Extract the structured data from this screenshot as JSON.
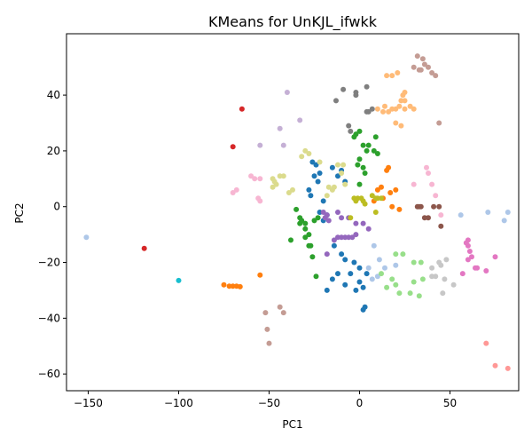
{
  "chart_data": {
    "type": "scatter",
    "title": "KMeans for UnKJL_ifwkk",
    "xlabel": "PC1",
    "ylabel": "PC2",
    "xlim": [
      -162,
      88
    ],
    "ylim": [
      -66,
      62
    ],
    "xticks": [
      -150,
      -100,
      -50,
      0,
      50
    ],
    "yticks": [
      -60,
      -40,
      -20,
      0,
      20,
      40
    ],
    "grid": false,
    "legend": "none",
    "clusters": [
      {
        "color": "#1f77b4",
        "points": [
          [
            -26,
            16
          ],
          [
            -24,
            15
          ],
          [
            -22,
            12
          ],
          [
            -28,
            6
          ],
          [
            -27,
            4
          ],
          [
            -20,
            2
          ],
          [
            -25,
            11
          ],
          [
            -23,
            9
          ],
          [
            -15,
            14
          ],
          [
            -10,
            13
          ],
          [
            -12,
            11
          ],
          [
            -8,
            9
          ],
          [
            -22,
            -2
          ],
          [
            -18,
            -3
          ],
          [
            -20,
            -5
          ],
          [
            -10,
            -17
          ],
          [
            -8,
            -19
          ],
          [
            -5,
            -24
          ],
          [
            -12,
            -24
          ],
          [
            -15,
            -26
          ],
          [
            -18,
            -30
          ],
          [
            -8,
            -28
          ],
          [
            0,
            -27
          ],
          [
            2,
            -29
          ],
          [
            -2,
            -30
          ],
          [
            4,
            -24
          ],
          [
            -3,
            -20
          ],
          [
            2,
            -37
          ],
          [
            3,
            -36
          ],
          [
            0,
            -22
          ],
          [
            -14,
            -14
          ]
        ]
      },
      {
        "color": "#ff7f0e",
        "points": [
          [
            -75,
            -28
          ],
          [
            -72,
            -28.5
          ],
          [
            -70,
            -28.5
          ],
          [
            -68,
            -28.5
          ],
          [
            -66,
            -28.7
          ],
          [
            -55,
            -24.5
          ],
          [
            10,
            6
          ],
          [
            12,
            7
          ],
          [
            20,
            6
          ],
          [
            17,
            5
          ],
          [
            18,
            0
          ],
          [
            22,
            -1
          ],
          [
            15,
            13
          ],
          [
            16,
            14
          ],
          [
            8,
            2
          ],
          [
            13,
            3
          ]
        ]
      },
      {
        "color": "#2ca02c",
        "points": [
          [
            -3,
            25
          ],
          [
            -2,
            26
          ],
          [
            0,
            27
          ],
          [
            2,
            22
          ],
          [
            5,
            22
          ],
          [
            4,
            20
          ],
          [
            8,
            20
          ],
          [
            9,
            25
          ],
          [
            10,
            19
          ],
          [
            0,
            17
          ],
          [
            -1,
            15
          ],
          [
            2,
            14
          ],
          [
            3,
            12
          ],
          [
            0,
            8
          ],
          [
            -35,
            -1
          ],
          [
            -33,
            -4
          ],
          [
            -33,
            -6
          ],
          [
            -30,
            -8
          ],
          [
            -28,
            -10
          ],
          [
            -32,
            -5
          ],
          [
            -30,
            -6
          ],
          [
            -25,
            -5
          ],
          [
            -23,
            -4
          ],
          [
            -26,
            -18
          ],
          [
            -27,
            -14
          ],
          [
            -24,
            -25
          ],
          [
            -38,
            -12
          ],
          [
            -30,
            -11
          ],
          [
            -28,
            -14
          ]
        ]
      },
      {
        "color": "#d62728",
        "points": [
          [
            -119,
            -15
          ],
          [
            -70,
            21.5
          ],
          [
            -65,
            35
          ]
        ]
      },
      {
        "color": "#9467bd",
        "points": [
          [
            -20,
            -2
          ],
          [
            -19,
            -4
          ],
          [
            -18,
            -3
          ],
          [
            -17,
            -5
          ],
          [
            -12,
            -2
          ],
          [
            -10,
            -4
          ],
          [
            -6,
            -4
          ],
          [
            -2,
            -6
          ],
          [
            2,
            -6
          ],
          [
            5,
            -8
          ],
          [
            -14,
            -12
          ],
          [
            -12,
            -11
          ],
          [
            -10,
            -11
          ],
          [
            -8,
            -11
          ],
          [
            -6,
            -11
          ],
          [
            -4,
            -11
          ],
          [
            -2,
            -10
          ],
          [
            -18,
            -17
          ]
        ]
      },
      {
        "color": "#8c564b",
        "points": [
          [
            32,
            0
          ],
          [
            33,
            0
          ],
          [
            34,
            0
          ],
          [
            41,
            0
          ],
          [
            44,
            0
          ],
          [
            36,
            -4
          ],
          [
            38,
            -4
          ],
          [
            45,
            -7
          ]
        ]
      },
      {
        "color": "#e377c2",
        "points": [
          [
            59,
            -13
          ],
          [
            60,
            -14
          ],
          [
            61,
            -16
          ],
          [
            60,
            -19
          ],
          [
            62,
            -18
          ],
          [
            64,
            -22
          ],
          [
            65,
            -22
          ],
          [
            70,
            -23
          ],
          [
            57,
            -24
          ],
          [
            75,
            -18
          ],
          [
            60,
            -12
          ]
        ]
      },
      {
        "color": "#7f7f7f",
        "points": [
          [
            -9,
            42
          ],
          [
            -2,
            41
          ],
          [
            -2,
            40
          ],
          [
            4,
            43
          ],
          [
            5,
            34
          ],
          [
            4,
            34
          ],
          [
            7,
            35
          ],
          [
            -6,
            29
          ],
          [
            -5,
            27
          ],
          [
            -13,
            38
          ]
        ]
      },
      {
        "color": "#bcbd22",
        "points": [
          [
            -2,
            2
          ],
          [
            -1,
            3
          ],
          [
            1,
            3
          ],
          [
            2,
            2
          ],
          [
            3,
            1
          ],
          [
            -3,
            3
          ],
          [
            -5,
            -4
          ],
          [
            7,
            4
          ],
          [
            9,
            3
          ],
          [
            10,
            3
          ],
          [
            12,
            3
          ],
          [
            9,
            -2
          ]
        ]
      },
      {
        "color": "#17becf",
        "points": [
          [
            -100,
            -26.5
          ]
        ]
      },
      {
        "color": "#aec7e8",
        "points": [
          [
            -151,
            -11
          ],
          [
            56,
            -3
          ],
          [
            71,
            -2
          ],
          [
            80,
            -5
          ],
          [
            82,
            -2
          ],
          [
            8,
            -14
          ],
          [
            11,
            -19
          ],
          [
            10,
            -25
          ],
          [
            14,
            -22
          ],
          [
            5,
            -22
          ],
          [
            20,
            -21
          ],
          [
            7,
            -26
          ]
        ]
      },
      {
        "color": "#ffbb78",
        "points": [
          [
            15,
            47
          ],
          [
            18,
            47
          ],
          [
            21,
            48
          ],
          [
            24,
            40
          ],
          [
            25,
            41
          ],
          [
            25,
            38
          ],
          [
            23,
            38
          ],
          [
            22,
            36
          ],
          [
            20,
            35
          ],
          [
            18,
            35
          ],
          [
            16,
            34
          ],
          [
            13,
            34
          ],
          [
            14,
            36
          ],
          [
            10,
            35
          ],
          [
            25,
            35
          ],
          [
            28,
            36
          ],
          [
            30,
            35
          ],
          [
            20,
            30
          ],
          [
            23,
            29
          ]
        ]
      },
      {
        "color": "#98df8a",
        "points": [
          [
            20,
            -17
          ],
          [
            24,
            -17
          ],
          [
            30,
            -20
          ],
          [
            34,
            -20
          ],
          [
            35,
            -26
          ],
          [
            28,
            -31
          ],
          [
            30,
            -27
          ],
          [
            33,
            -32
          ],
          [
            22,
            -31
          ],
          [
            20,
            -28
          ],
          [
            15,
            -29
          ],
          [
            12,
            -24
          ],
          [
            18,
            -26
          ]
        ]
      },
      {
        "color": "#ff9896",
        "points": [
          [
            70,
            -49
          ],
          [
            75,
            -57
          ],
          [
            82,
            -58
          ]
        ]
      },
      {
        "color": "#c5b0d5",
        "points": [
          [
            -55,
            22
          ],
          [
            -42,
            22
          ],
          [
            -40,
            41
          ],
          [
            -44,
            28
          ],
          [
            -33,
            31
          ]
        ]
      },
      {
        "color": "#c49c94",
        "points": [
          [
            30,
            50
          ],
          [
            32,
            54
          ],
          [
            35,
            53
          ],
          [
            36,
            51
          ],
          [
            38,
            50
          ],
          [
            33,
            49
          ],
          [
            34,
            49
          ],
          [
            40,
            48
          ],
          [
            42,
            47
          ],
          [
            44,
            30
          ],
          [
            -52,
            -38
          ],
          [
            -44,
            -36
          ],
          [
            -42,
            -38
          ],
          [
            -51,
            -44
          ],
          [
            -50,
            -49
          ]
        ]
      },
      {
        "color": "#f7b6d2",
        "points": [
          [
            -60,
            11
          ],
          [
            -58,
            10
          ],
          [
            -55,
            10
          ],
          [
            -56,
            3
          ],
          [
            -55,
            2
          ],
          [
            -70,
            5
          ],
          [
            -68,
            6
          ],
          [
            37,
            14
          ],
          [
            38,
            12
          ],
          [
            40,
            8
          ],
          [
            42,
            4
          ],
          [
            45,
            -3
          ],
          [
            30,
            8
          ]
        ]
      },
      {
        "color": "#c7c7c7",
        "points": [
          [
            40,
            -22
          ],
          [
            44,
            -20
          ],
          [
            45,
            -21
          ],
          [
            48,
            -19
          ],
          [
            52,
            -28
          ],
          [
            47,
            -26
          ],
          [
            46,
            -31
          ],
          [
            40,
            -25
          ],
          [
            42,
            -25
          ]
        ]
      },
      {
        "color": "#dbdb8d",
        "points": [
          [
            -48,
            10
          ],
          [
            -47,
            9
          ],
          [
            -46,
            8
          ],
          [
            -48,
            7
          ],
          [
            -44,
            11
          ],
          [
            -42,
            11
          ],
          [
            -39,
            5
          ],
          [
            -37,
            6
          ],
          [
            -32,
            18
          ],
          [
            -30,
            20
          ],
          [
            -28,
            19
          ],
          [
            -22,
            16
          ],
          [
            -17,
            7
          ],
          [
            -15,
            6
          ],
          [
            -14,
            7
          ],
          [
            -10,
            12
          ],
          [
            -12,
            15
          ],
          [
            -9,
            15
          ],
          [
            -8,
            8
          ],
          [
            -18,
            4
          ]
        ]
      }
    ]
  }
}
